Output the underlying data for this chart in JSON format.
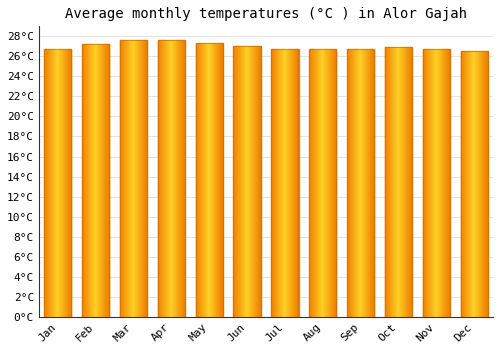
{
  "title": "Average monthly temperatures (°C ) in Alor Gajah",
  "months": [
    "Jan",
    "Feb",
    "Mar",
    "Apr",
    "May",
    "Jun",
    "Jul",
    "Aug",
    "Sep",
    "Oct",
    "Nov",
    "Dec"
  ],
  "temperatures": [
    26.7,
    27.2,
    27.6,
    27.6,
    27.3,
    27.0,
    26.7,
    26.7,
    26.7,
    26.9,
    26.7,
    26.5
  ],
  "ylim": [
    0,
    29
  ],
  "ytick_step": 2,
  "bar_color_center": "#FFB300",
  "bar_color_edge": "#F08000",
  "bg_color": "#FFFFFF",
  "grid_color": "#DDDDDD",
  "title_fontsize": 10,
  "tick_fontsize": 8,
  "font_family": "monospace"
}
